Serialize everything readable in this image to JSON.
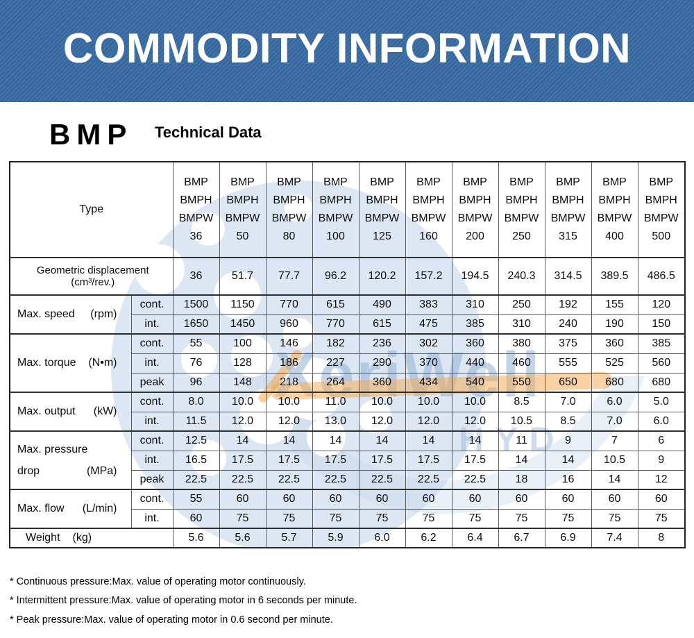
{
  "banner": {
    "title": "COMMODITY INFORMATION"
  },
  "header": {
    "product": "BMP",
    "subtitle": "Technical Data"
  },
  "watermark": {
    "brand": "XeriWell",
    "sub_brand": "HYD"
  },
  "table": {
    "type_label": "Type",
    "model_lines": [
      "BMP",
      "BMPH",
      "BMPW"
    ],
    "sizes": [
      "36",
      "50",
      "80",
      "100",
      "125",
      "160",
      "200",
      "250",
      "315",
      "400",
      "500"
    ],
    "groups": [
      {
        "label": "Geometric displacement (cm³/rev.)",
        "unit": "",
        "cls": "geo",
        "span2": true,
        "rows": [
          {
            "sub": "",
            "values": [
              "36",
              "51.7",
              "77.7",
              "96.2",
              "120.2",
              "157.2",
              "194.5",
              "240.3",
              "314.5",
              "389.5",
              "486.5"
            ]
          }
        ]
      },
      {
        "label": "Max. speed",
        "unit": "(rpm)",
        "rows": [
          {
            "sub": "cont.",
            "values": [
              "1500",
              "1150",
              "770",
              "615",
              "490",
              "383",
              "310",
              "250",
              "192",
              "155",
              "120"
            ]
          },
          {
            "sub": "int.",
            "values": [
              "1650",
              "1450",
              "960",
              "770",
              "615",
              "475",
              "385",
              "310",
              "240",
              "190",
              "150"
            ]
          }
        ]
      },
      {
        "label": "Max. torque",
        "unit": "(N•m)",
        "rows": [
          {
            "sub": "cont.",
            "values": [
              "55",
              "100",
              "146",
              "182",
              "236",
              "302",
              "360",
              "380",
              "375",
              "360",
              "385"
            ]
          },
          {
            "sub": "int.",
            "values": [
              "76",
              "128",
              "186",
              "227",
              "290",
              "370",
              "440",
              "460",
              "555",
              "525",
              "560"
            ]
          },
          {
            "sub": "peak",
            "values": [
              "96",
              "148",
              "218",
              "264",
              "360",
              "434",
              "540",
              "550",
              "650",
              "680",
              "680"
            ]
          }
        ]
      },
      {
        "label": "Max. output",
        "unit": "(kW)",
        "rows": [
          {
            "sub": "cont.",
            "values": [
              "8.0",
              "10.0",
              "10.0",
              "11.0",
              "10.0",
              "10.0",
              "10.0",
              "8.5",
              "7.0",
              "6.0",
              "5.0"
            ]
          },
          {
            "sub": "int.",
            "values": [
              "11.5",
              "12.0",
              "12.0",
              "13.0",
              "12.0",
              "12.0",
              "12.0",
              "10.5",
              "8.5",
              "7.0",
              "6.0"
            ]
          }
        ]
      },
      {
        "label": "Max. pressure",
        "label2": "drop",
        "unit": "(MPa)",
        "rows": [
          {
            "sub": "cont.",
            "values": [
              "12.5",
              "14",
              "14",
              "14",
              "14",
              "14",
              "14",
              "11",
              "9",
              "7",
              "6"
            ]
          },
          {
            "sub": "int.",
            "values": [
              "16.5",
              "17.5",
              "17.5",
              "17.5",
              "17.5",
              "17.5",
              "17.5",
              "14",
              "14",
              "10.5",
              "9"
            ]
          },
          {
            "sub": "peak",
            "values": [
              "22.5",
              "22.5",
              "22.5",
              "22.5",
              "22.5",
              "22.5",
              "22.5",
              "18",
              "16",
              "14",
              "12"
            ]
          }
        ]
      },
      {
        "label": "Max. flow",
        "unit": "(L/min)",
        "rows": [
          {
            "sub": "cont.",
            "values": [
              "55",
              "60",
              "60",
              "60",
              "60",
              "60",
              "60",
              "60",
              "60",
              "60",
              "60"
            ]
          },
          {
            "sub": "int.",
            "values": [
              "60",
              "75",
              "75",
              "75",
              "75",
              "75",
              "75",
              "75",
              "75",
              "75",
              "75"
            ]
          }
        ]
      },
      {
        "label": "Weight",
        "unit": "(kg)",
        "near": true,
        "span2": true,
        "rows": [
          {
            "sub": "",
            "values": [
              "5.6",
              "5.6",
              "5.7",
              "5.9",
              "6.0",
              "6.2",
              "6.4",
              "6.7",
              "6.9",
              "7.4",
              "8"
            ]
          }
        ]
      }
    ]
  },
  "footnotes": [
    "* Continuous pressure:Max. value of operating motor continuously.",
    "* Intermittent pressure:Max. value of operating motor in 6 seconds per minute.",
    "* Peak pressure:Max. value of operating motor in 0.6 second per minute."
  ]
}
